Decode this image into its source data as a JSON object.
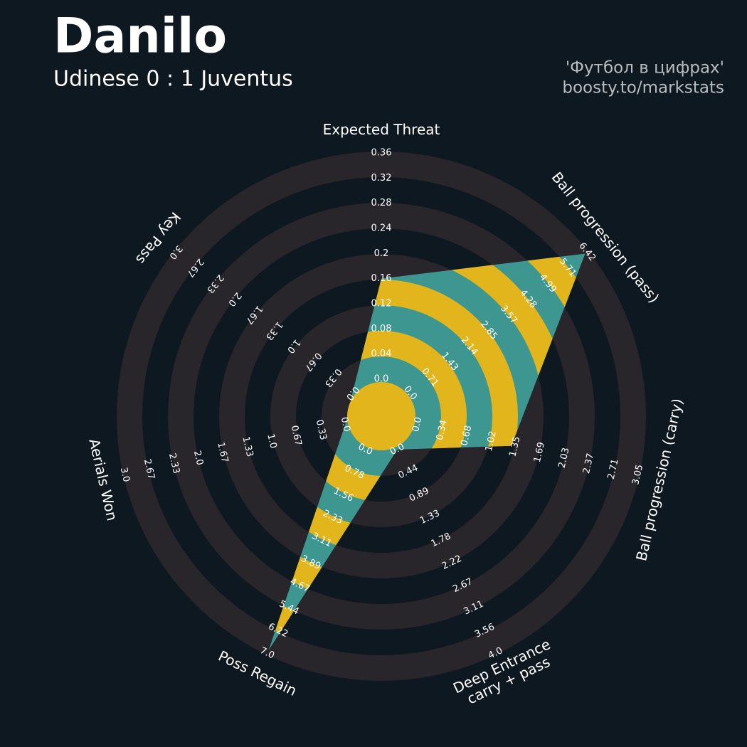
{
  "chart_data": {
    "type": "radar",
    "title": "Danilo",
    "subtitle": "Udinese 0 : 1 Juventus",
    "credits": [
      "'Футбол в цифрах'",
      "boosty.to/markstats"
    ],
    "categories": [
      "Expected Threat",
      "Ball progression (pass)",
      "Ball progression (carry)",
      "Deep Entrance\ncarry + pass",
      "Poss Regain",
      "Aerials Won",
      "Key Pass"
    ],
    "values": [
      0.16,
      6.35,
      1.3,
      0,
      6.9,
      0,
      0
    ],
    "ranges": [
      {
        "lim": [
          0,
          0.36
        ],
        "ticks": [
          {
            "value": 0,
            "label": "0.0"
          },
          0.04,
          0.08,
          0.12,
          0.16,
          0.2,
          0.24,
          0.28,
          0.32,
          0.36
        ]
      },
      {
        "lim": [
          0,
          6.42
        ],
        "ticks": [
          {
            "value": 0,
            "label": "0.0"
          },
          0.71,
          1.43,
          2.14,
          2.85,
          3.57,
          4.28,
          4.99,
          5.71,
          6.42
        ]
      },
      {
        "lim": [
          0,
          3.05
        ],
        "ticks": [
          {
            "value": 0,
            "label": "0.0"
          },
          0.34,
          0.68,
          1.02,
          1.35,
          1.69,
          2.03,
          2.37,
          2.71,
          3.05
        ]
      },
      {
        "lim": [
          0,
          4
        ],
        "ticks": [
          {
            "value": 0,
            "label": "0.0"
          },
          0.44,
          0.89,
          1.33,
          1.78,
          2.22,
          2.67,
          3.11,
          3.56,
          {
            "value": 4,
            "label": "4.0"
          }
        ]
      },
      {
        "lim": [
          0,
          7
        ],
        "ticks": [
          {
            "value": 0,
            "label": "0.0"
          },
          0.78,
          1.56,
          2.33,
          3.11,
          3.89,
          4.67,
          5.44,
          6.22,
          {
            "value": 7,
            "label": "7.0"
          }
        ]
      },
      {
        "lim": [
          0,
          3
        ],
        "ticks": [
          {
            "value": 0,
            "label": "0.0"
          },
          0.33,
          0.67,
          {
            "value": 1,
            "label": "1.0"
          },
          1.33,
          1.67,
          {
            "value": 2,
            "label": "2.0"
          },
          2.33,
          2.67,
          {
            "value": 3,
            "label": "3.0"
          }
        ]
      },
      {
        "lim": [
          0,
          3
        ],
        "ticks": [
          {
            "value": 0,
            "label": "0.0"
          },
          0.33,
          0.67,
          {
            "value": 1,
            "label": "1.0"
          },
          1.33,
          1.67,
          {
            "value": 2,
            "label": "2.0"
          },
          2.33,
          2.67,
          {
            "value": 3,
            "label": "3.0"
          }
        ]
      }
    ],
    "colors": {
      "ring": "#28252b",
      "fill": "#3d9690",
      "fill_alt": "#e3b51c"
    }
  }
}
